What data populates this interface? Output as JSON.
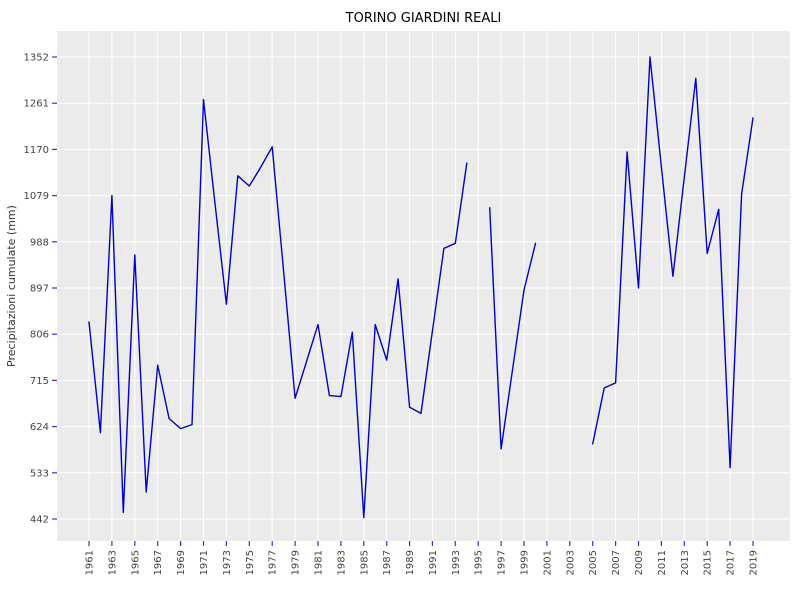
{
  "title": "TORINO GIARDINI REALI",
  "chart_data": {
    "type": "line",
    "title": "TORINO GIARDINI REALI",
    "xlabel": "",
    "ylabel": "Precipitazioni cumulate (mm)",
    "legend": "none",
    "grid": "on",
    "panel_bg": "#EBEBEB",
    "grid_color": "#FFFFFF",
    "line_color": "#0000CD",
    "tick_color": "#3333CC",
    "label_color": "#444444",
    "title_color": "#000000",
    "ylim": [
      442,
      1352
    ],
    "yticks": [
      442,
      533,
      624,
      715,
      806,
      897,
      988,
      1079,
      1170,
      1261,
      1352
    ],
    "xticks": [
      1961,
      1963,
      1965,
      1967,
      1969,
      1971,
      1973,
      1975,
      1977,
      1979,
      1981,
      1983,
      1985,
      1987,
      1989,
      1991,
      1993,
      1995,
      1997,
      1999,
      2001,
      2003,
      2005,
      2007,
      2009,
      2011,
      2013,
      2015,
      2017,
      2019
    ],
    "x_range": [
      1961,
      2019
    ],
    "years": [
      1961,
      1962,
      1963,
      1964,
      1965,
      1966,
      1967,
      1968,
      1969,
      1970,
      1971,
      1972,
      1973,
      1974,
      1975,
      1976,
      1977,
      1978,
      1979,
      1980,
      1981,
      1982,
      1983,
      1984,
      1985,
      1986,
      1987,
      1988,
      1989,
      1990,
      1991,
      1992,
      1993,
      1994,
      1995,
      1996,
      1997,
      1998,
      1999,
      2000,
      2001,
      2002,
      2003,
      2004,
      2005,
      2006,
      2007,
      2008,
      2009,
      2010,
      2011,
      2012,
      2013,
      2014,
      2015,
      2016,
      2017,
      2018,
      2019
    ],
    "values": [
      830,
      612,
      1079,
      455,
      962,
      495,
      745,
      640,
      620,
      628,
      1268,
      1065,
      865,
      1118,
      1098,
      1135,
      1175,
      930,
      680,
      752,
      825,
      685,
      683,
      810,
      445,
      825,
      755,
      915,
      662,
      650,
      812,
      975,
      985,
      1143,
      null,
      1055,
      580,
      737,
      893,
      985,
      null,
      null,
      null,
      null,
      590,
      700,
      710,
      1165,
      897,
      1352,
      1135,
      920,
      1115,
      1310,
      965,
      1052,
      543,
      1082,
      1232
    ]
  }
}
